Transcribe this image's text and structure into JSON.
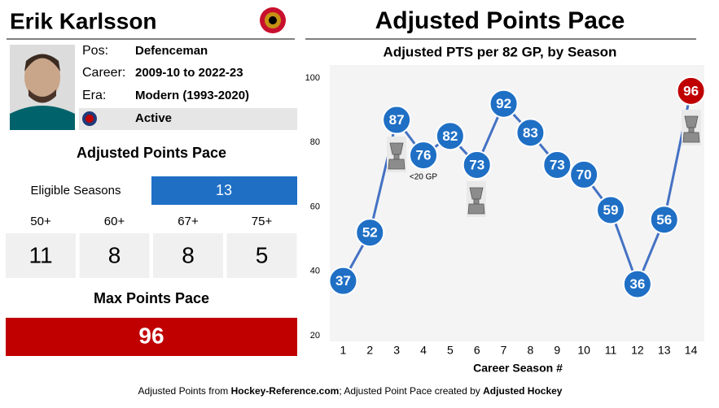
{
  "player": {
    "name": "Erik Karlsson",
    "fields": [
      {
        "label": "Pos:",
        "value": "Defenceman"
      },
      {
        "label": "Career:",
        "value": "2009-10 to 2022-23"
      },
      {
        "label": "Era:",
        "value": "Modern (1993-2020)"
      },
      {
        "value": "Active"
      }
    ]
  },
  "summary": {
    "title": "Adjusted Points Pace",
    "eligible_label": "Eligible Seasons",
    "eligible_value": 13,
    "thresholds": [
      {
        "label": "50+",
        "count": 11
      },
      {
        "label": "60+",
        "count": 8
      },
      {
        "label": "67+",
        "count": 8
      },
      {
        "label": "75+",
        "count": 5
      }
    ]
  },
  "max": {
    "title": "Max Points Pace",
    "value": 96
  },
  "chart_data": {
    "type": "line",
    "title": "Adjusted Points Pace",
    "subtitle": "Adjusted PTS per 82 GP, by Season",
    "x_label": "Career Season #",
    "x": [
      1,
      2,
      3,
      4,
      5,
      6,
      7,
      8,
      9,
      10,
      11,
      12,
      13,
      14
    ],
    "series": [
      {
        "color": "#4472c4",
        "values": [
          37,
          52,
          87,
          76,
          82,
          73,
          92,
          83,
          73,
          70,
          59,
          36,
          56,
          96
        ]
      }
    ],
    "marker_color": "#1f6fc5",
    "max_color": "#c00000",
    "xlim": [
      0.5,
      14.5
    ],
    "xticks": [
      1,
      2,
      3,
      4,
      5,
      6,
      7,
      8,
      9,
      10,
      11,
      12,
      13,
      14
    ],
    "ylim": [
      20,
      100
    ],
    "yticks": [
      20,
      40,
      60,
      80,
      100
    ],
    "grid": false,
    "annotations": [
      {
        "text": "<20 GP",
        "x": 4
      }
    ]
  },
  "footer": {
    "parts": [
      "Adjusted Points from ",
      "Hockey-Reference.com",
      "; Adjusted Point Pace created by ",
      "Adjusted Hockey"
    ]
  }
}
